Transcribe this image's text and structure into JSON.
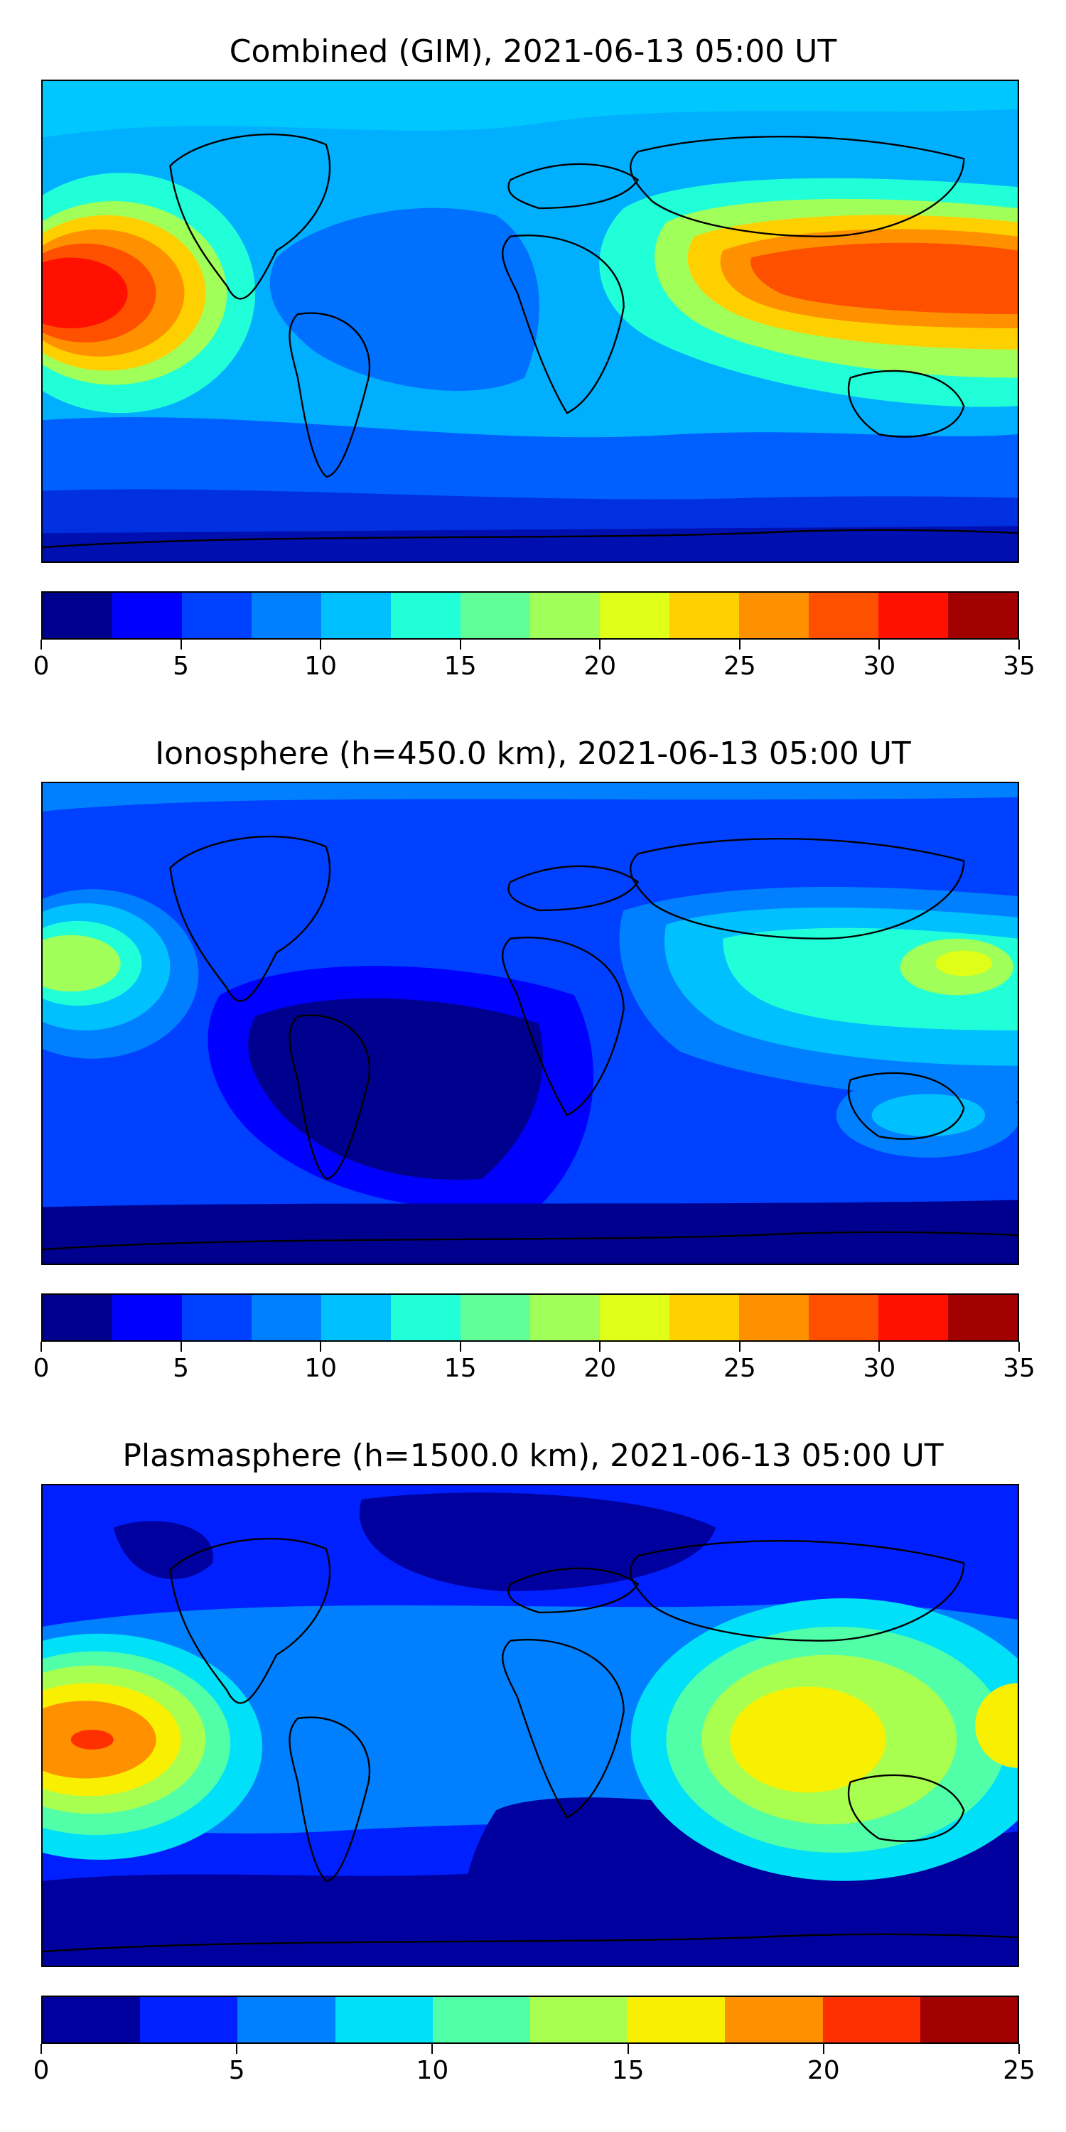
{
  "figure": {
    "panels": [
      {
        "id": "combined",
        "title": "Combined (GIM), 2021-06-13 05:00 UT",
        "colorbar": {
          "min": 0,
          "max": 35,
          "step": 2.5,
          "ticks": [
            "0",
            "5",
            "10",
            "15",
            "20",
            "25",
            "30",
            "35"
          ],
          "colors": [
            "#00008f",
            "#0000ff",
            "#0040ff",
            "#0080ff",
            "#00c0ff",
            "#20ffd8",
            "#60ff98",
            "#a0ff58",
            "#e0ff18",
            "#ffd000",
            "#ff9000",
            "#ff5000",
            "#ff1000",
            "#a00000"
          ]
        },
        "field_level": "high"
      },
      {
        "id": "ionosphere",
        "title": "Ionosphere  (h=450.0 km), 2021-06-13 05:00 UT",
        "colorbar": {
          "min": 0,
          "max": 35,
          "step": 2.5,
          "ticks": [
            "0",
            "5",
            "10",
            "15",
            "20",
            "25",
            "30",
            "35"
          ],
          "colors": [
            "#00008f",
            "#0000ff",
            "#0040ff",
            "#0080ff",
            "#00c0ff",
            "#20ffd8",
            "#60ff98",
            "#a0ff58",
            "#e0ff18",
            "#ffd000",
            "#ff9000",
            "#ff5000",
            "#ff1000",
            "#a00000"
          ]
        },
        "field_level": "low"
      },
      {
        "id": "plasmasphere",
        "title": "Plasmasphere (h=1500.0 km), 2021-06-13 05:00 UT",
        "colorbar": {
          "min": 0,
          "max": 25,
          "step": 2.5,
          "ticks": [
            "0",
            "5",
            "10",
            "15",
            "20",
            "25"
          ],
          "colors": [
            "#00009f",
            "#0020ff",
            "#0080ff",
            "#00e0f8",
            "#50ffa8",
            "#a8ff50",
            "#f8f000",
            "#ff9000",
            "#ff3000",
            "#a00000"
          ]
        },
        "field_level": "mid"
      }
    ]
  }
}
